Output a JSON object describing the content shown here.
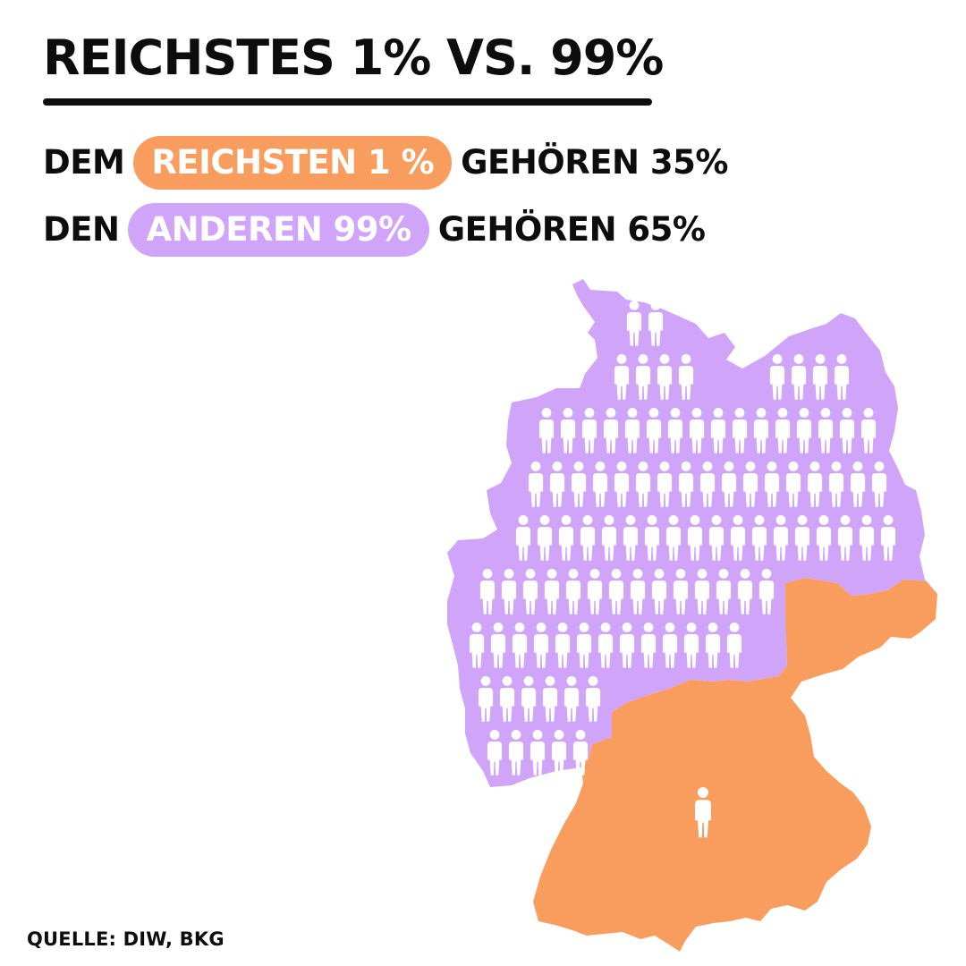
{
  "title": "REICHSTES 1% VS. 99%",
  "line1": {
    "before": "DEM",
    "pill": "REICHSTEN 1 %",
    "after": "GEHÖREN 35%"
  },
  "line2": {
    "before": "DEN",
    "pill": "ANDEREN 99%",
    "after": "GEHÖREN 65%"
  },
  "source": "QUELLE: DIW, BKG",
  "colors": {
    "orange": "#f99d5e",
    "violet": "#cfa4f9",
    "text": "#0d0d0d",
    "figure": "#ffffff"
  },
  "groups": [
    {
      "name": "richest-1-percent",
      "people": 1,
      "wealth_share_percent": 35
    },
    {
      "name": "other-99-percent",
      "people": 99,
      "wealth_share_percent": 65
    }
  ],
  "icons": {
    "person": "person-icon"
  }
}
